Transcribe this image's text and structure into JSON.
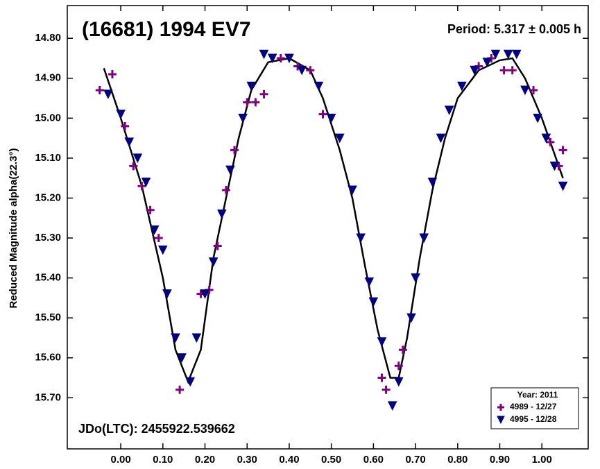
{
  "chart_data": {
    "type": "scatter",
    "title": "(16681) 1994 EV7",
    "period": "Period: 5.317 ± 0.005 h",
    "epoch": "JDo(LTC): 2455922.539662",
    "y_label": "Reduced Magnitude alpha(22.3°)",
    "legend_title": "Year: 2011",
    "legend_position": "lower right",
    "xlim": [
      -0.127,
      1.11
    ],
    "ylim": [
      14.718,
      15.828
    ],
    "y_inverted": true,
    "xticks": [
      {
        "value": 0,
        "label": "0.00"
      },
      {
        "value": 0.1,
        "label": "0.10"
      },
      {
        "value": 0.2,
        "label": "0.20"
      },
      {
        "value": 0.3,
        "label": "0.30"
      },
      {
        "value": 0.4,
        "label": "0.40"
      },
      {
        "value": 0.5,
        "label": "0.50"
      },
      {
        "value": 0.6,
        "label": "0.60"
      },
      {
        "value": 0.7,
        "label": "0.70"
      },
      {
        "value": 0.8,
        "label": "0.80"
      },
      {
        "value": 0.9,
        "label": "0.90"
      },
      {
        "value": 1,
        "label": "1.00"
      }
    ],
    "yticks": [
      {
        "value": 14.8,
        "label": "14.80"
      },
      {
        "value": 14.9,
        "label": "14.90"
      },
      {
        "value": 15,
        "label": "15.00"
      },
      {
        "value": 15.1,
        "label": "15.10"
      },
      {
        "value": 15.2,
        "label": "15.20"
      },
      {
        "value": 15.3,
        "label": "15.30"
      },
      {
        "value": 15.4,
        "label": "15.40"
      },
      {
        "value": 15.5,
        "label": "15.50"
      },
      {
        "value": 15.6,
        "label": "15.60"
      },
      {
        "value": 15.7,
        "label": "15.70"
      }
    ],
    "series": [
      {
        "name": "4989 - 12/27",
        "color": "#800080",
        "marker": "cross",
        "x": [
          -0.05,
          -0.02,
          0.01,
          0.03,
          0.05,
          0.07,
          0.09,
          0.14,
          0.19,
          0.21,
          0.23,
          0.25,
          0.27,
          0.3,
          0.32,
          0.34,
          0.38,
          0.42,
          0.45,
          0.48,
          0.62,
          0.63,
          0.66,
          0.67,
          0.85,
          0.88,
          0.91,
          0.93,
          0.98,
          1.02,
          1.04,
          1.05
        ],
        "values": [
          14.93,
          14.89,
          15.02,
          15.12,
          15.17,
          15.23,
          15.3,
          15.68,
          15.44,
          15.43,
          15.32,
          15.18,
          15.08,
          14.96,
          14.96,
          14.94,
          14.85,
          14.87,
          14.88,
          14.99,
          15.65,
          15.68,
          15.62,
          15.58,
          14.87,
          14.85,
          14.88,
          14.88,
          14.93,
          15.06,
          15.12,
          15.08
        ]
      },
      {
        "name": "4995 - 12/28",
        "color": "#000080",
        "marker": "triangle",
        "x": [
          -0.03,
          0.0,
          0.02,
          0.04,
          0.06,
          0.08,
          0.1,
          0.11,
          0.13,
          0.145,
          0.165,
          0.18,
          0.2,
          0.22,
          0.24,
          0.26,
          0.29,
          0.31,
          0.34,
          0.36,
          0.4,
          0.43,
          0.47,
          0.5,
          0.52,
          0.55,
          0.57,
          0.59,
          0.6,
          0.62,
          0.645,
          0.66,
          0.69,
          0.7,
          0.72,
          0.74,
          0.76,
          0.78,
          0.81,
          0.84,
          0.87,
          0.89,
          0.92,
          0.94,
          0.96,
          0.99,
          1.01,
          1.03,
          1.05
        ],
        "values": [
          14.94,
          14.99,
          15.06,
          15.1,
          15.16,
          15.28,
          15.33,
          15.44,
          15.55,
          15.6,
          15.66,
          15.55,
          15.44,
          15.36,
          15.24,
          15.13,
          15.0,
          14.92,
          14.84,
          14.85,
          14.85,
          14.88,
          14.92,
          15.0,
          15.05,
          15.18,
          15.3,
          15.41,
          15.46,
          15.56,
          15.72,
          15.66,
          15.5,
          15.4,
          15.3,
          15.16,
          15.05,
          14.98,
          14.92,
          14.88,
          14.86,
          14.84,
          14.84,
          14.84,
          14.93,
          15.0,
          15.05,
          15.12,
          15.17
        ]
      }
    ],
    "fit": {
      "color": "#000000",
      "x": [
        -0.04,
        0.0,
        0.05,
        0.1,
        0.13,
        0.16,
        0.19,
        0.22,
        0.25,
        0.28,
        0.31,
        0.35,
        0.4,
        0.45,
        0.48,
        0.52,
        0.55,
        0.58,
        0.61,
        0.64,
        0.66,
        0.68,
        0.71,
        0.74,
        0.77,
        0.8,
        0.85,
        0.9,
        0.93,
        0.96,
        1.0,
        1.05
      ],
      "values": [
        14.875,
        15.0,
        15.17,
        15.4,
        15.58,
        15.66,
        15.58,
        15.35,
        15.2,
        15.05,
        14.93,
        14.86,
        14.85,
        14.88,
        14.95,
        15.08,
        15.2,
        15.37,
        15.53,
        15.65,
        15.65,
        15.55,
        15.35,
        15.18,
        15.05,
        14.95,
        14.88,
        14.855,
        14.85,
        14.9,
        15.0,
        15.15
      ]
    }
  }
}
